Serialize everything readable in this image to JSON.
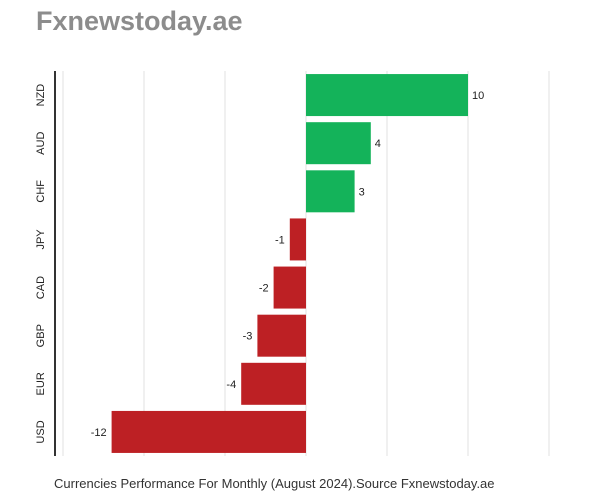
{
  "brand": "Fxnewstoday.ae",
  "caption": "Currencies Performance For Monthly (August 2024).Source Fxnewstoday.ae",
  "colors": {
    "positive": "#14b35a",
    "negative": "#bd2024",
    "grid": "#e0e0e0",
    "axis": "#333333",
    "text": "#222222"
  },
  "chart_data": {
    "type": "bar",
    "orientation": "horizontal",
    "categories": [
      "NZD",
      "AUD",
      "CHF",
      "JPY",
      "CAD",
      "GBP",
      "EUR",
      "USD"
    ],
    "values": [
      10,
      4,
      3,
      -1,
      -2,
      -3,
      -4,
      -12
    ],
    "data_labels": [
      "10",
      "4",
      "3",
      "-1",
      "-2",
      "-3",
      "-4",
      "-12"
    ],
    "xlim": [
      -15,
      15
    ],
    "grid": true,
    "legend": "none",
    "title": "",
    "xlabel": "",
    "ylabel": ""
  }
}
